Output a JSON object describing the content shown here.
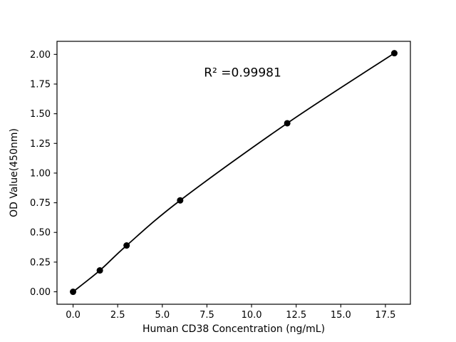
{
  "chart_data": {
    "type": "scatter",
    "title": "",
    "xlabel": "Human CD38 Concentration (ng/mL)",
    "ylabel": "OD Value(450nm)",
    "points": [
      {
        "x": 0.0,
        "y": 0.0
      },
      {
        "x": 1.5,
        "y": 0.18
      },
      {
        "x": 3.0,
        "y": 0.39
      },
      {
        "x": 6.0,
        "y": 0.77
      },
      {
        "x": 12.0,
        "y": 1.42
      },
      {
        "x": 18.0,
        "y": 2.01
      }
    ],
    "fit_curve": true,
    "xlim": [
      -0.9,
      18.9
    ],
    "ylim": [
      -0.105,
      2.11
    ],
    "xticks": [
      0.0,
      2.5,
      5.0,
      7.5,
      10.0,
      12.5,
      15.0,
      17.5
    ],
    "xtick_labels": [
      "0.0",
      "2.5",
      "5.0",
      "7.5",
      "10.0",
      "12.5",
      "15.0",
      "17.5"
    ],
    "yticks": [
      0.0,
      0.25,
      0.5,
      0.75,
      1.0,
      1.25,
      1.5,
      1.75,
      2.0
    ],
    "ytick_labels": [
      "0.00",
      "0.25",
      "0.50",
      "0.75",
      "1.00",
      "1.25",
      "1.50",
      "1.75",
      "2.00"
    ],
    "annotation": {
      "text": "R² =0.99981",
      "x": 9.5,
      "y": 1.85
    },
    "grid": false,
    "legend": null,
    "line_color": "#000000",
    "marker_color": "#000000",
    "background_color": "#ffffff",
    "marker_size": 4.5
  }
}
